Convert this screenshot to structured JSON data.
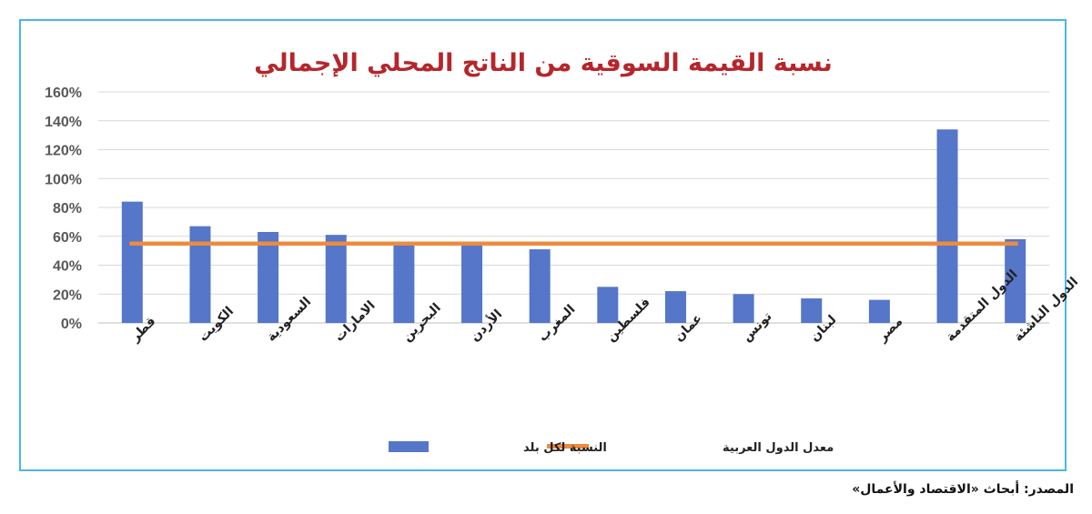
{
  "chart_data": {
    "type": "bar",
    "title": "نسبة القيمة السوقية من الناتج المحلي الإجمالي",
    "categories": [
      "قطر",
      "الكويت",
      "السعودية",
      "الامارات",
      "البحرين",
      "الأردن",
      "المغرب",
      "فلسطين",
      "عمان",
      "تونس",
      "لبنان",
      "مصر",
      "الدول المتقدمة",
      "الدول الناشئة"
    ],
    "series": [
      {
        "name": "النسبة لكل بلد",
        "type": "bar",
        "color": "#5576c9",
        "values": [
          84,
          67,
          63,
          61,
          56,
          55,
          51,
          25,
          22,
          20,
          17,
          16,
          134,
          58
        ]
      },
      {
        "name": "معدل الدول العربية",
        "type": "line",
        "color": "#ed8b3f",
        "values": [
          55,
          55,
          55,
          55,
          55,
          55,
          55,
          55,
          55,
          55,
          55,
          55,
          55,
          55
        ]
      }
    ],
    "ylim": [
      0,
      160
    ],
    "yticks": [
      "0%",
      "20%",
      "40%",
      "60%",
      "80%",
      "100%",
      "120%",
      "140%",
      "160%"
    ],
    "grid": true,
    "legend_position": "bottom"
  },
  "source": "المصدر: أبحاث «الاقتصاد والأعمال»"
}
